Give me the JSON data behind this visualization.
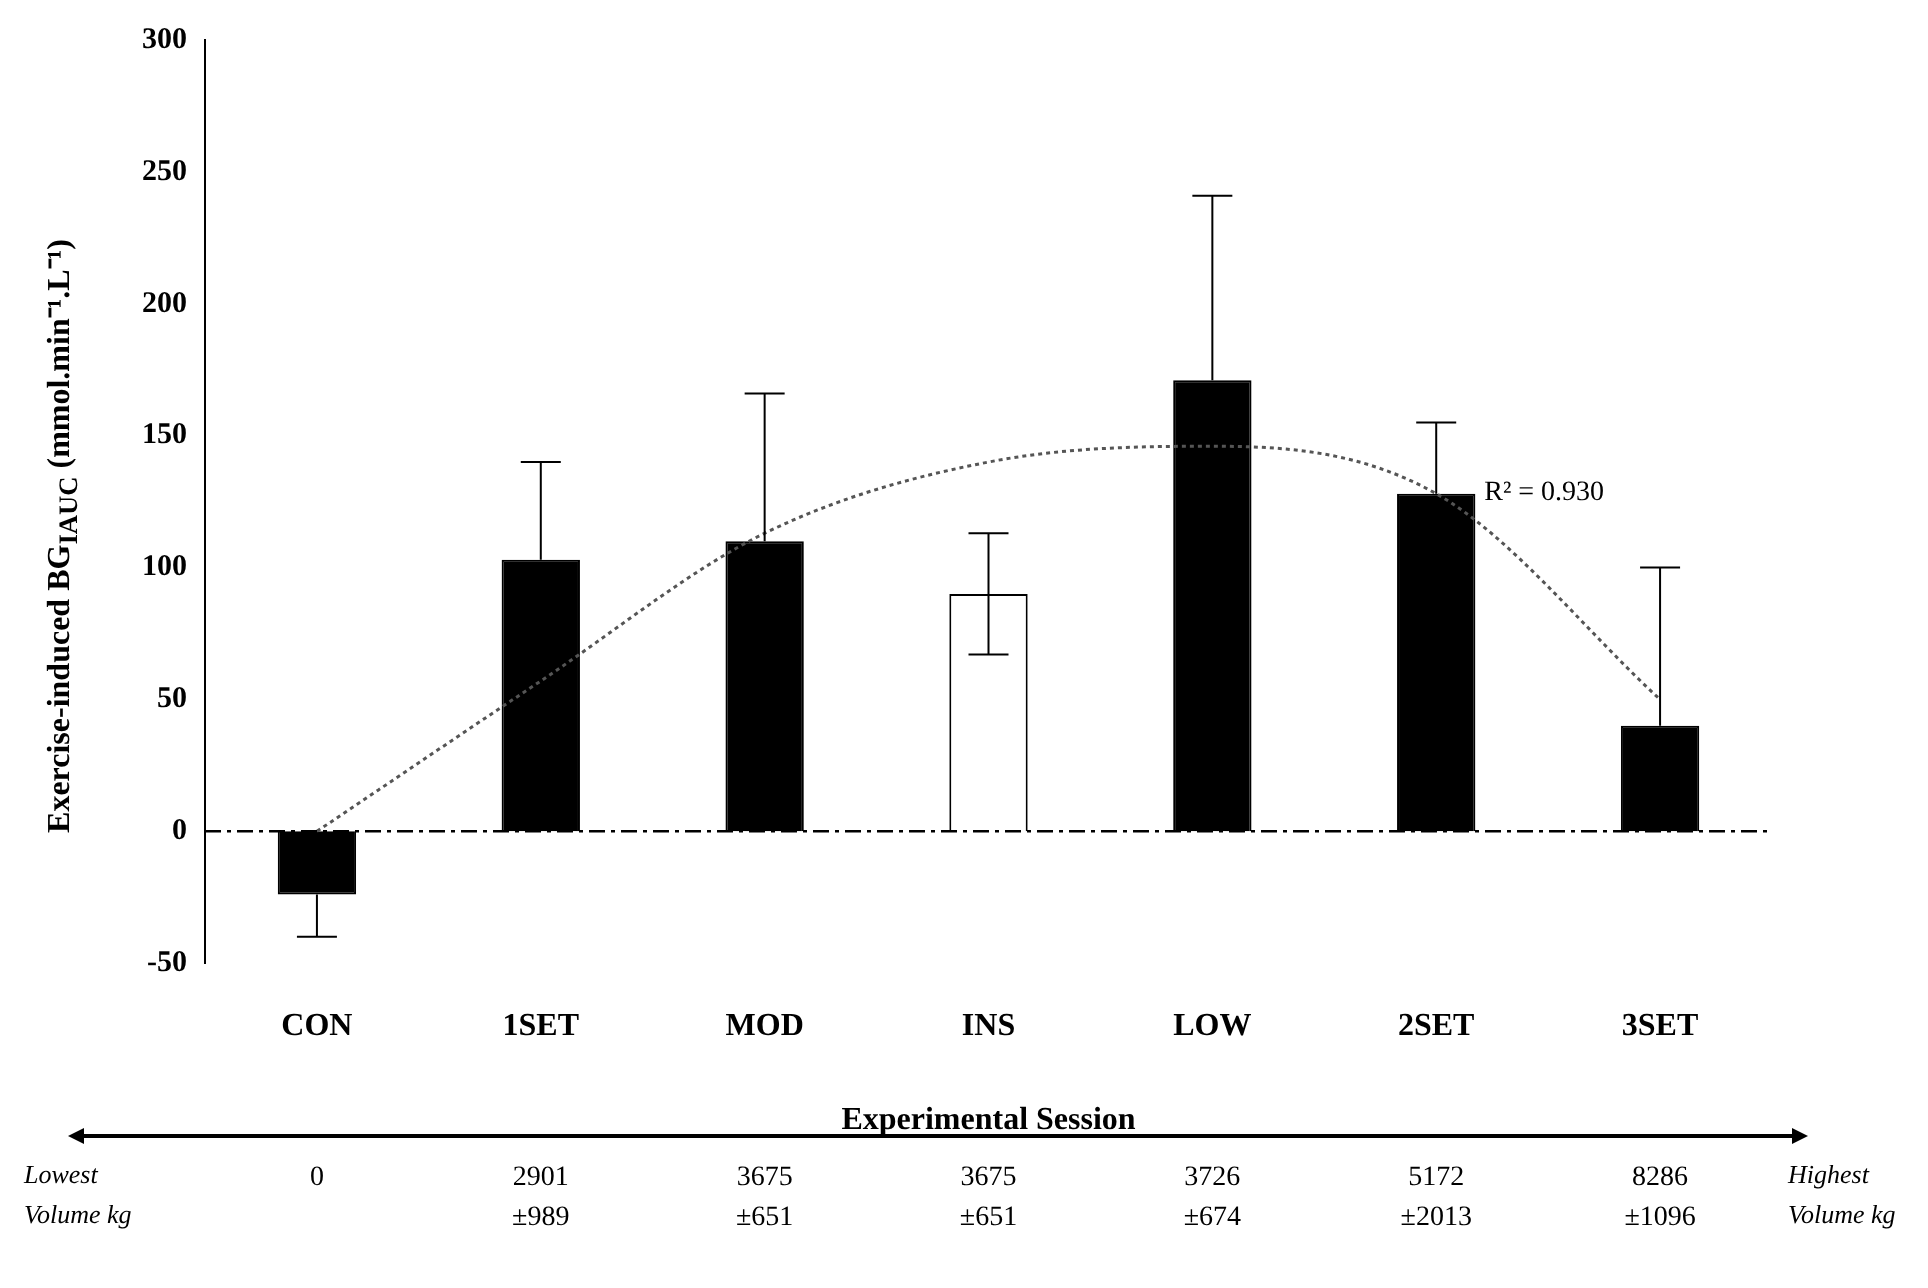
{
  "chart_data": {
    "type": "bar",
    "xlabel": "Experimental Session",
    "ylabel": "Exercise-induced BG$_{IAUC}$ (mmol.min⁻¹.L⁻¹)",
    "categories": [
      "CON",
      "1SET",
      "MOD",
      "INS",
      "LOW",
      "2SET",
      "3SET"
    ],
    "series": [
      {
        "values": [
          -24,
          103,
          110,
          90,
          171,
          128,
          40
        ],
        "colors": [
          "#000000",
          "#000000",
          "#000000",
          "#ffffff",
          "#000000",
          "#000000",
          "#000000"
        ],
        "errors": [
          [
            -40,
            -24
          ],
          [
            103,
            140
          ],
          [
            110,
            166
          ],
          [
            67,
            113
          ],
          [
            171,
            241
          ],
          [
            128,
            155
          ],
          [
            40,
            100
          ]
        ]
      },
      {
        "type": "line",
        "color": "#555555",
        "line_style": "dotted",
        "marker": "none",
        "x": [
          "CON",
          "1SET",
          "MOD",
          "INS",
          "LOW",
          "2SET",
          "3SET"
        ],
        "values": [
          0,
          57,
          113,
          140,
          146,
          128,
          50
        ]
      }
    ],
    "ylim": [
      -50,
      300
    ],
    "yticks": [
      -50,
      0,
      50,
      100,
      150,
      200,
      250,
      300
    ],
    "grid": false,
    "legend": false,
    "ref_lines": [
      {
        "axis": "y",
        "value": 0,
        "line_style": "dashed",
        "color": "#000000"
      }
    ],
    "annotations": [
      "R² = 0.930",
      "Lowest Volume kg",
      "Highest Volume kg",
      "0",
      "2901 ±989",
      "3675 ±651",
      "3675 ±651",
      "3726 ±674",
      "5172 ±2013",
      "8286 ±1096"
    ]
  }
}
